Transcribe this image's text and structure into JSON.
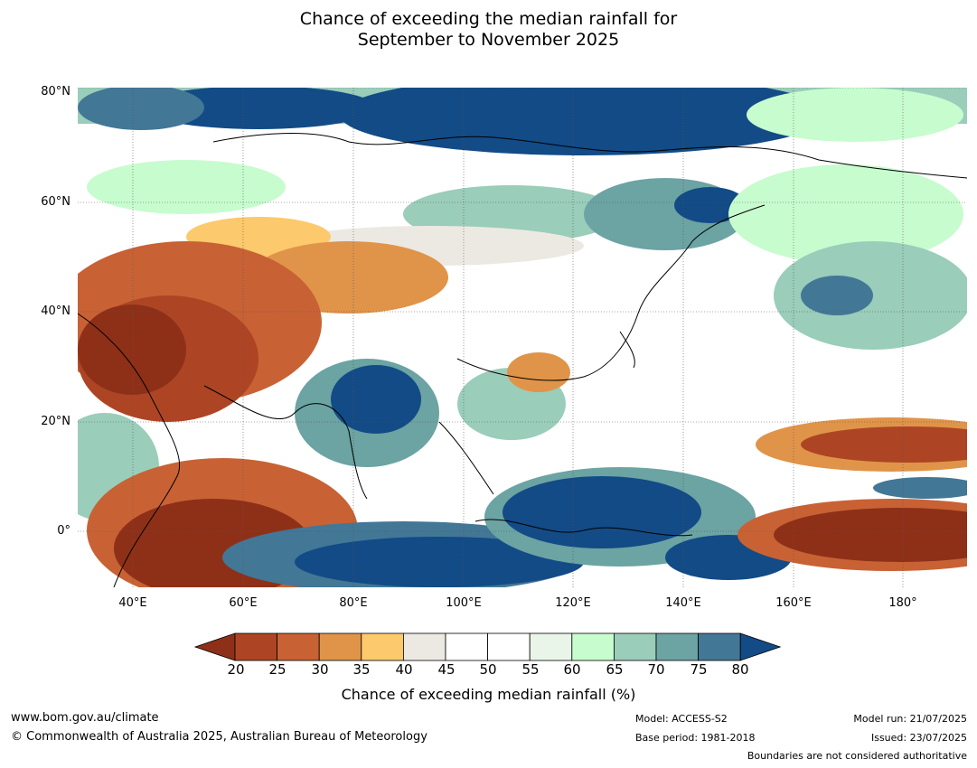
{
  "title": {
    "line1": "Chance of exceeding the median rainfall for",
    "line2": "September to November 2025"
  },
  "lat_labels": [
    "80°N",
    "60°N",
    "40°N",
    "20°N",
    "0°"
  ],
  "lon_labels": [
    "40°E",
    "60°E",
    "80°E",
    "100°E",
    "120°E",
    "140°E",
    "160°E",
    "180°"
  ],
  "colorbar": {
    "labels": [
      "20",
      "25",
      "30",
      "35",
      "40",
      "45",
      "50",
      "55",
      "60",
      "65",
      "70",
      "75",
      "80"
    ],
    "colors": [
      "#8e3018",
      "#ad4524",
      "#c86234",
      "#e09449",
      "#fcc96c",
      "#ece9e3",
      "#ffffff",
      "#ffffff",
      "#eaf5ea",
      "#c7fcce",
      "#9acdba",
      "#6ca3a3",
      "#437796",
      "#124b86"
    ],
    "title": "Chance of exceeding median rainfall (%)"
  },
  "footer": {
    "website": "www.bom.gov.au/climate",
    "copyright": "© Commonwealth of Australia 2025, Australian Bureau of Meteorology",
    "model": "Model: ACCESS-S2",
    "base_period": "Base period: 1981-2018",
    "model_run": "Model run: 21/07/2025",
    "issued": "Issued: 23/07/2025",
    "disclaimer": "Boundaries are not considered authoritative"
  }
}
